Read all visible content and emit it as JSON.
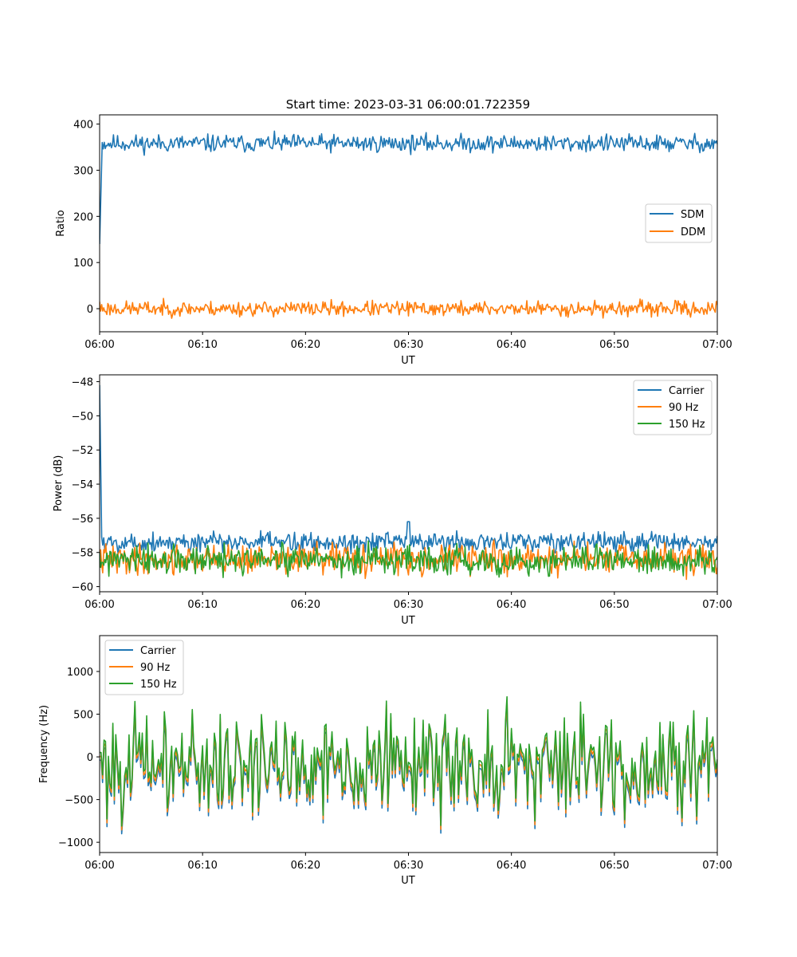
{
  "chart_data": [
    {
      "type": "line",
      "title": "Start time: 2023-03-31 06:00:01.722359",
      "xlabel": "UT",
      "ylabel": "Ratio",
      "x_range_minutes": [
        0,
        60
      ],
      "xlim": [
        "06:00",
        "07:00"
      ],
      "x_ticks": [
        "06:00",
        "06:10",
        "06:20",
        "06:30",
        "06:40",
        "06:50",
        "07:00"
      ],
      "ylim": [
        -50,
        420
      ],
      "y_ticks": [
        400,
        300,
        200,
        100,
        0
      ],
      "grid": false,
      "legend": "center-right",
      "series": [
        {
          "name": "SDM",
          "color": "#1f77b4",
          "start": [
            [
              0,
              140
            ],
            [
              0.25,
              360
            ]
          ],
          "mean": 358,
          "amp": 28,
          "seed": 11,
          "points": 600
        },
        {
          "name": "DDM",
          "color": "#ff7f0e",
          "start": [
            [
              0,
              15
            ]
          ],
          "mean": 0,
          "amp": 24,
          "seed": 23,
          "points": 600
        }
      ]
    },
    {
      "type": "line",
      "title": "",
      "xlabel": "UT",
      "ylabel": "Power (dB)",
      "x_range_minutes": [
        0,
        60
      ],
      "xlim": [
        "06:00",
        "07:00"
      ],
      "x_ticks": [
        "06:00",
        "06:10",
        "06:20",
        "06:30",
        "06:40",
        "06:50",
        "07:00"
      ],
      "ylim": [
        -60.3,
        -47.6
      ],
      "y_ticks": [
        -48,
        -50,
        -52,
        -54,
        -56,
        -58,
        -60
      ],
      "grid": false,
      "legend": "top-right",
      "series": [
        {
          "name": "Carrier",
          "color": "#1f77b4",
          "start": [
            [
              0,
              -48.2
            ],
            [
              0.2,
              -57.1
            ]
          ],
          "mean": -57.4,
          "amp": 0.9,
          "seed": 5,
          "points": 600,
          "bump": [
            30,
            -56.2
          ]
        },
        {
          "name": "90 Hz",
          "color": "#ff7f0e",
          "start": [
            [
              0,
              -58.4
            ]
          ],
          "mean": -58.4,
          "amp": 1.3,
          "seed": 41,
          "points": 600
        },
        {
          "name": "150 Hz",
          "color": "#2ca02c",
          "start": [
            [
              0,
              -58.0
            ]
          ],
          "mean": -58.5,
          "amp": 1.3,
          "seed": 77,
          "points": 600
        }
      ]
    },
    {
      "type": "line",
      "title": "",
      "xlabel": "UT",
      "ylabel": "Frequency (Hz)",
      "x_range_minutes": [
        0,
        60
      ],
      "xlim": [
        "06:00",
        "07:00"
      ],
      "x_ticks": [
        "06:00",
        "06:10",
        "06:20",
        "06:30",
        "06:40",
        "06:50",
        "07:00"
      ],
      "ylim": [
        -1120,
        1420
      ],
      "y_ticks": [
        1000,
        500,
        0,
        -500,
        -1000
      ],
      "y_tick_labels": [
        "1000",
        "500",
        "0",
        "−500",
        "−1000"
      ],
      "grid": false,
      "legend": "top-left",
      "series": [
        {
          "name": "Carrier",
          "color": "#1f77b4",
          "mean": -60,
          "amp": 880,
          "seed": 101,
          "points": 420,
          "offset": -90
        },
        {
          "name": "90 Hz",
          "color": "#ff7f0e",
          "mean": -60,
          "amp": 880,
          "seed": 101,
          "points": 420,
          "offset": -45
        },
        {
          "name": "150 Hz",
          "color": "#2ca02c",
          "mean": -60,
          "amp": 880,
          "seed": 101,
          "points": 420,
          "offset": 0
        }
      ]
    }
  ]
}
